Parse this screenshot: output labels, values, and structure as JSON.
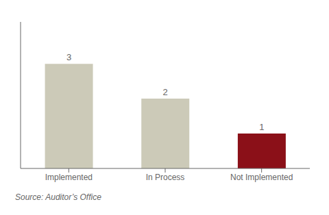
{
  "chart_data": {
    "type": "bar",
    "categories": [
      "Implemented",
      "In Process",
      "Not Implemented"
    ],
    "values": [
      3,
      2,
      1
    ],
    "colors": [
      "#cccab8",
      "#cccab8",
      "#8b1018"
    ],
    "ylim": [
      0,
      4.2
    ],
    "data_labels": true,
    "tick_labels": "x",
    "grid": false,
    "annotations": [
      "Source: Auditor’s Office"
    ]
  }
}
